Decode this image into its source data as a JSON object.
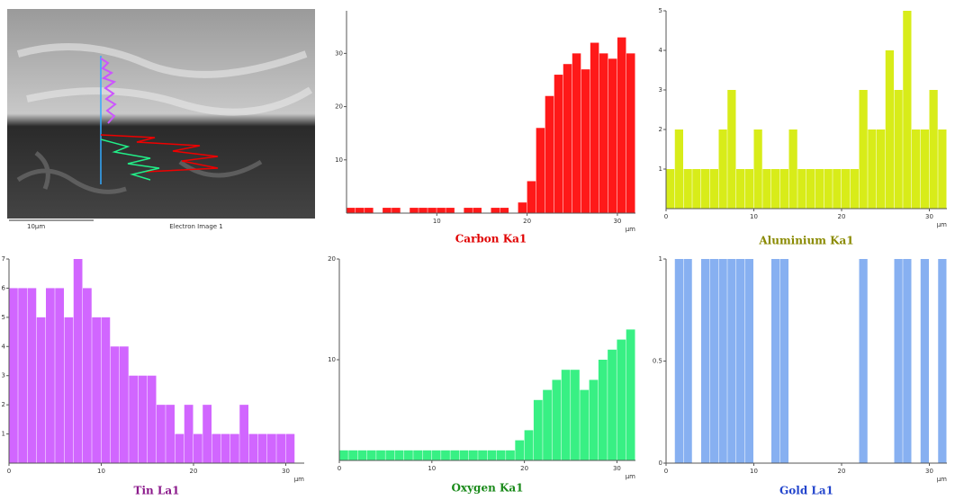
{
  "image": {
    "caption": "Electron Image 1",
    "scale_label": "10µm"
  },
  "chart_data": [
    {
      "type": "histogram",
      "title": "Carbon Ka1",
      "title_color": "#e00000",
      "color": "#ff0000",
      "x_label": "µm",
      "bins": [
        0,
        1,
        2,
        3,
        4,
        5,
        6,
        7,
        8,
        9,
        10,
        11,
        12,
        13,
        14,
        15,
        16,
        17,
        18,
        19,
        20,
        21,
        22,
        23,
        24,
        25,
        26,
        27,
        28,
        29,
        30,
        31,
        32
      ],
      "values": [
        1,
        1,
        1,
        0,
        1,
        1,
        0,
        1,
        1,
        1,
        1,
        1,
        0,
        1,
        1,
        0,
        1,
        1,
        0,
        2,
        6,
        16,
        22,
        26,
        28,
        30,
        27,
        32,
        30,
        29,
        33,
        30
      ],
      "xlim": [
        0,
        32
      ],
      "xticks": [
        10,
        20,
        30
      ],
      "ylim": [
        0,
        38
      ],
      "yticks": [
        10,
        20,
        30
      ]
    },
    {
      "type": "histogram",
      "title": "Aluminium Ka1",
      "title_color": "#8a8a00",
      "color": "#d4ea00",
      "x_label": "µm",
      "bins": [
        0,
        1,
        2,
        3,
        4,
        5,
        6,
        7,
        8,
        9,
        10,
        11,
        12,
        13,
        14,
        15,
        16,
        17,
        18,
        19,
        20,
        21,
        22,
        23,
        24,
        25,
        26,
        27,
        28,
        29,
        30,
        31,
        32
      ],
      "values": [
        1,
        2,
        1,
        1,
        1,
        1,
        2,
        3,
        1,
        1,
        2,
        1,
        1,
        1,
        2,
        1,
        1,
        1,
        1,
        1,
        1,
        1,
        3,
        2,
        2,
        4,
        3,
        5,
        2,
        2,
        3,
        2
      ],
      "xlim": [
        0,
        32
      ],
      "xticks": [
        0,
        10,
        20,
        30
      ],
      "ylim": [
        0,
        5
      ],
      "yticks": [
        1,
        2,
        3,
        4,
        5
      ]
    },
    {
      "type": "histogram",
      "title": "Tin La1",
      "title_color": "#8b1a8b",
      "color": "#cc55ff",
      "x_label": "µm",
      "bins": [
        0,
        1,
        2,
        3,
        4,
        5,
        6,
        7,
        8,
        9,
        10,
        11,
        12,
        13,
        14,
        15,
        16,
        17,
        18,
        19,
        20,
        21,
        22,
        23,
        24,
        25,
        26,
        27,
        28,
        29,
        30,
        31,
        32
      ],
      "values": [
        6,
        6,
        6,
        5,
        6,
        6,
        5,
        7,
        6,
        5,
        5,
        4,
        4,
        3,
        3,
        3,
        2,
        2,
        1,
        2,
        1,
        2,
        1,
        1,
        1,
        2,
        1,
        1,
        1,
        1,
        1,
        0
      ],
      "xlim": [
        0,
        32
      ],
      "xticks": [
        0,
        10,
        20,
        30
      ],
      "ylim": [
        0,
        7
      ],
      "yticks": [
        1,
        2,
        3,
        4,
        5,
        6,
        7
      ]
    },
    {
      "type": "histogram",
      "title": "Oxygen Ka1",
      "title_color": "#1a8a1a",
      "color": "#22ee77",
      "x_label": "µm",
      "bins": [
        0,
        1,
        2,
        3,
        4,
        5,
        6,
        7,
        8,
        9,
        10,
        11,
        12,
        13,
        14,
        15,
        16,
        17,
        18,
        19,
        20,
        21,
        22,
        23,
        24,
        25,
        26,
        27,
        28,
        29,
        30,
        31,
        32
      ],
      "values": [
        1,
        1,
        1,
        1,
        1,
        1,
        1,
        1,
        1,
        1,
        1,
        1,
        1,
        1,
        1,
        1,
        1,
        1,
        1,
        2,
        3,
        6,
        7,
        8,
        9,
        9,
        7,
        8,
        10,
        11,
        12,
        13
      ],
      "xlim": [
        0,
        32
      ],
      "xticks": [
        0,
        10,
        20,
        30
      ],
      "ylim": [
        0,
        20
      ],
      "yticks": [
        10,
        20
      ]
    },
    {
      "type": "histogram",
      "title": "Gold La1",
      "title_color": "#2244cc",
      "color": "#7aa7ef",
      "x_label": "µm",
      "bins": [
        0,
        1,
        2,
        3,
        4,
        5,
        6,
        7,
        8,
        9,
        10,
        11,
        12,
        13,
        14,
        15,
        16,
        17,
        18,
        19,
        20,
        21,
        22,
        23,
        24,
        25,
        26,
        27,
        28,
        29,
        30,
        31,
        32
      ],
      "values": [
        0,
        1,
        1,
        0,
        1,
        1,
        1,
        1,
        1,
        1,
        0,
        0,
        1,
        1,
        0,
        0,
        0,
        0,
        0,
        0,
        0,
        0,
        1,
        0,
        0,
        0,
        1,
        1,
        0,
        1,
        0,
        1
      ],
      "xlim": [
        0,
        32
      ],
      "xticks": [
        0,
        10,
        20,
        30
      ],
      "ylim": [
        0,
        1
      ],
      "yticks": [
        0,
        0.5,
        1
      ]
    }
  ]
}
